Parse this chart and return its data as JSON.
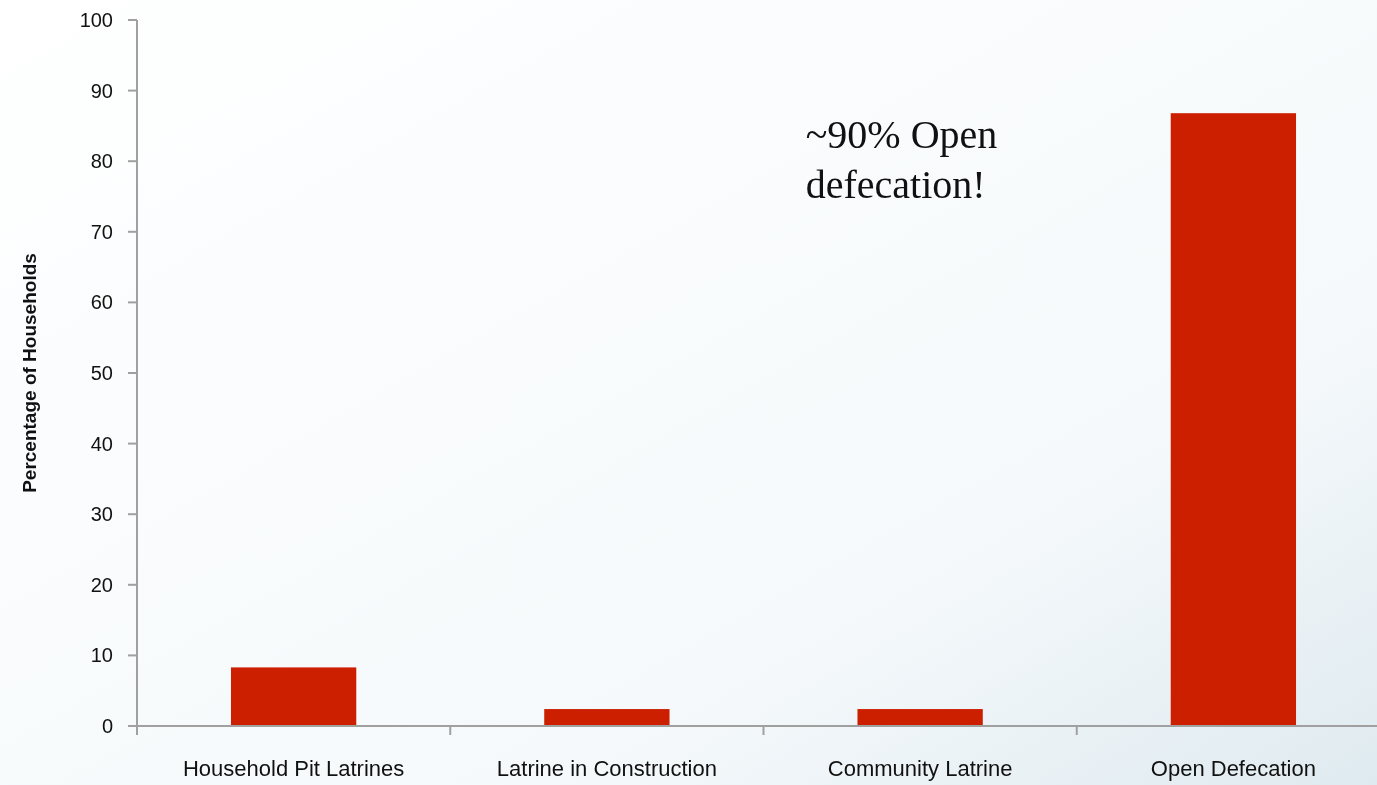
{
  "chart_data": {
    "type": "bar",
    "ylabel": "Percentage of Households",
    "categories": [
      "Household Pit Latrines",
      "Latrine in Construction",
      "Community Latrine",
      "Open Defecation"
    ],
    "values": [
      8.3,
      2.4,
      2.4,
      86.8
    ],
    "color": "#cc1f00",
    "ylim": [
      0,
      100
    ],
    "yticks": [
      0,
      10,
      20,
      30,
      40,
      50,
      60,
      70,
      80,
      90,
      100
    ],
    "grid": false,
    "annotations": [
      "~90% Open defecation!"
    ]
  }
}
